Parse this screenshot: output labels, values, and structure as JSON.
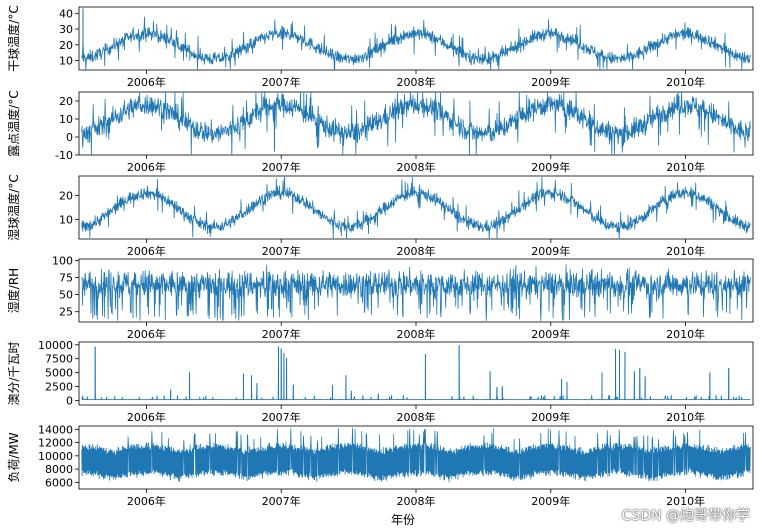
{
  "chart_data": {
    "type": "line",
    "line_color": "#1f77b4",
    "x_range": [
      2005.5,
      2010.5
    ],
    "x_tick_values": [
      2006,
      2007,
      2008,
      2009,
      2010
    ],
    "x_tick_labels": [
      "2006年",
      "2007年",
      "2008年",
      "2009年",
      "2010年"
    ],
    "xlabel": "年份",
    "panels": [
      {
        "name": "dry-bulb-temperature",
        "ylabel": "干球温度/°C",
        "ylim": [
          4,
          44
        ],
        "y_ticks": [
          10,
          20,
          30,
          40
        ],
        "profile": "seasonal",
        "mean": 19,
        "amplitude": 8,
        "noise": 4,
        "spikes": [
          [
            2005.53,
            43
          ]
        ]
      },
      {
        "name": "dew-point-temperature",
        "ylabel": "露点温度/°C",
        "ylim": [
          -10,
          25
        ],
        "y_ticks": [
          -10,
          0,
          10,
          20
        ],
        "profile": "seasonal",
        "mean": 10,
        "amplitude": 8,
        "noise": 6,
        "spikes": [
          [
            2006.95,
            -8
          ]
        ]
      },
      {
        "name": "wet-bulb-temperature",
        "ylabel": "湿球温度/°C",
        "ylim": [
          2,
          28
        ],
        "y_ticks": [
          10,
          20
        ],
        "profile": "seasonal",
        "mean": 14,
        "amplitude": 7,
        "noise": 2.5,
        "spikes": []
      },
      {
        "name": "humidity",
        "ylabel": "湿度/RH",
        "ylim": [
          10,
          102
        ],
        "y_ticks": [
          25,
          50,
          75,
          100
        ],
        "profile": "noise",
        "mean": 65,
        "amplitude": 0,
        "noise": 18,
        "min": 12,
        "max": 99,
        "spikes": []
      },
      {
        "name": "settlement-price",
        "ylabel": "澳分/千瓦时",
        "ylim": [
          -800,
          10500
        ],
        "y_ticks": [
          0,
          2500,
          5000,
          7500,
          10000
        ],
        "profile": "baseline",
        "mean": 150,
        "amplitude": 0,
        "noise": 60,
        "spikes": [
          [
            2005.62,
            9600
          ],
          [
            2006.18,
            1900
          ],
          [
            2006.32,
            5000
          ],
          [
            2006.72,
            4800
          ],
          [
            2006.78,
            4500
          ],
          [
            2006.82,
            3100
          ],
          [
            2006.98,
            9700
          ],
          [
            2007.0,
            9300
          ],
          [
            2007.02,
            8500
          ],
          [
            2007.04,
            7600
          ],
          [
            2007.09,
            2800
          ],
          [
            2007.38,
            2800
          ],
          [
            2007.48,
            4500
          ],
          [
            2007.52,
            1700
          ],
          [
            2007.72,
            1200
          ],
          [
            2008.07,
            8300
          ],
          [
            2008.32,
            9900
          ],
          [
            2008.55,
            5200
          ],
          [
            2008.6,
            2400
          ],
          [
            2008.64,
            2500
          ],
          [
            2009.08,
            3800
          ],
          [
            2009.12,
            3300
          ],
          [
            2009.38,
            5000
          ],
          [
            2009.48,
            9200
          ],
          [
            2009.51,
            9000
          ],
          [
            2009.55,
            8700
          ],
          [
            2009.62,
            5200
          ],
          [
            2009.66,
            5800
          ],
          [
            2009.7,
            4300
          ],
          [
            2010.18,
            5000
          ],
          [
            2010.32,
            5800
          ]
        ]
      },
      {
        "name": "load",
        "ylabel": "负荷/MW",
        "ylim": [
          5000,
          14500
        ],
        "y_ticks": [
          6000,
          8000,
          10000,
          12000,
          14000
        ],
        "profile": "load",
        "mean": 8600,
        "amplitude": 2700,
        "noise": 1600,
        "min": 5900,
        "max": 14200,
        "spikes": []
      }
    ]
  },
  "watermark": "CSDN @炮哥带你学"
}
